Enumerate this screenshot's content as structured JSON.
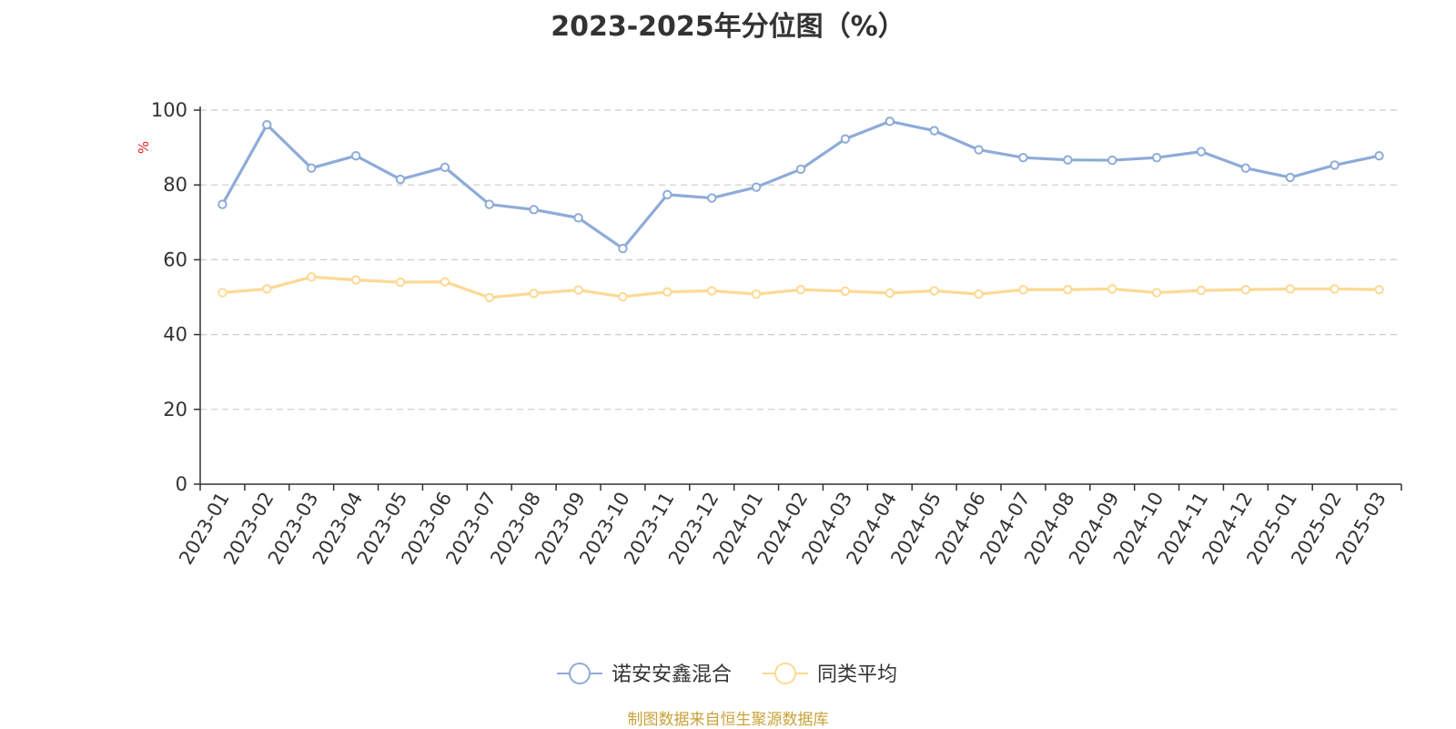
{
  "chart_data": {
    "type": "line",
    "title": "2023-2025年分位图（%）",
    "ylabel": "%",
    "xlabel": "",
    "ylim": [
      0,
      100
    ],
    "yticks": [
      0,
      20,
      40,
      60,
      80,
      100
    ],
    "grid": true,
    "legend_position": "bottom-center",
    "categories": [
      "2023-01",
      "2023-02",
      "2023-03",
      "2023-04",
      "2023-05",
      "2023-06",
      "2023-07",
      "2023-08",
      "2023-09",
      "2023-10",
      "2023-11",
      "2023-12",
      "2024-01",
      "2024-02",
      "2024-03",
      "2024-04",
      "2024-05",
      "2024-06",
      "2024-07",
      "2024-08",
      "2024-09",
      "2024-10",
      "2024-11",
      "2024-12",
      "2025-01",
      "2025-02",
      "2025-03"
    ],
    "series": [
      {
        "name": "诺安安鑫混合",
        "color": "#8eabd8",
        "values": [
          74.8,
          96.1,
          84.5,
          87.8,
          81.5,
          84.7,
          74.8,
          73.4,
          71.2,
          63.0,
          77.4,
          76.5,
          79.4,
          84.2,
          92.3,
          97.0,
          94.5,
          89.4,
          87.3,
          86.7,
          86.6,
          87.3,
          88.9,
          84.5,
          82.0,
          85.3,
          87.8
        ]
      },
      {
        "name": "同类平均",
        "color": "#fdd993",
        "values": [
          51.2,
          52.2,
          55.4,
          54.6,
          54.0,
          54.1,
          49.9,
          51.0,
          51.9,
          50.1,
          51.4,
          51.7,
          50.8,
          52.0,
          51.6,
          51.1,
          51.7,
          50.8,
          52.0,
          52.0,
          52.2,
          51.2,
          51.8,
          52.0,
          52.2,
          52.2,
          52.0
        ]
      }
    ]
  },
  "source_note": "制图数据来自恒生聚源数据库",
  "colors": {
    "axis": "#333333",
    "grid": "#cccccc",
    "ylabel": "#e02020",
    "source": "#c9a23b"
  }
}
